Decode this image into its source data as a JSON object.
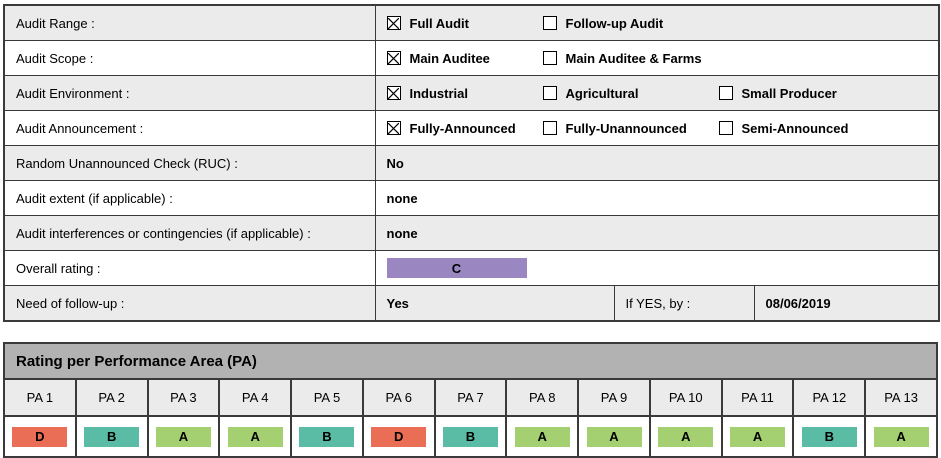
{
  "colors": {
    "rating_A": "#a5d071",
    "rating_B": "#5abca4",
    "rating_C": "#9a87c1",
    "rating_D": "#ea6e55",
    "row_alt": "#ebebeb",
    "section_header": "#b2b2b2",
    "border": "#3a3a3a"
  },
  "form": {
    "rows": [
      {
        "label": "Audit Range :",
        "type": "checkboxes",
        "options": [
          {
            "label": "Full Audit",
            "checked": true
          },
          {
            "label": "Follow-up Audit",
            "checked": false
          }
        ]
      },
      {
        "label": "Audit Scope :",
        "type": "checkboxes",
        "options": [
          {
            "label": "Main Auditee",
            "checked": true
          },
          {
            "label": "Main Auditee & Farms",
            "checked": false
          }
        ]
      },
      {
        "label": "Audit Environment :",
        "type": "checkboxes",
        "options": [
          {
            "label": "Industrial",
            "checked": true
          },
          {
            "label": "Agricultural",
            "checked": false
          },
          {
            "label": "Small Producer",
            "checked": false
          }
        ]
      },
      {
        "label": "Audit Announcement :",
        "type": "checkboxes",
        "options": [
          {
            "label": "Fully-Announced",
            "checked": true
          },
          {
            "label": "Fully-Unannounced",
            "checked": false
          },
          {
            "label": "Semi-Announced",
            "checked": false
          }
        ]
      },
      {
        "label": "Random Unannounced Check (RUC) :",
        "type": "text",
        "value": "No"
      },
      {
        "label": "Audit extent (if applicable) :",
        "type": "text",
        "value": "none"
      },
      {
        "label": "Audit interferences or contingencies (if applicable) :",
        "type": "text",
        "value": "none"
      },
      {
        "label": "Overall rating :",
        "type": "badge",
        "value": "C"
      },
      {
        "label": "Need of follow-up :",
        "type": "followup",
        "value": "Yes",
        "if_yes_label": "If YES, by :",
        "date": "08/06/2019"
      }
    ]
  },
  "pa_section": {
    "title": "Rating per Performance Area (PA)",
    "columns": [
      "PA 1",
      "PA 2",
      "PA 3",
      "PA 4",
      "PA 5",
      "PA 6",
      "PA 7",
      "PA 8",
      "PA 9",
      "PA 10",
      "PA 11",
      "PA 12",
      "PA 13"
    ],
    "ratings": [
      "D",
      "B",
      "A",
      "A",
      "B",
      "D",
      "B",
      "A",
      "A",
      "A",
      "A",
      "B",
      "A"
    ]
  }
}
